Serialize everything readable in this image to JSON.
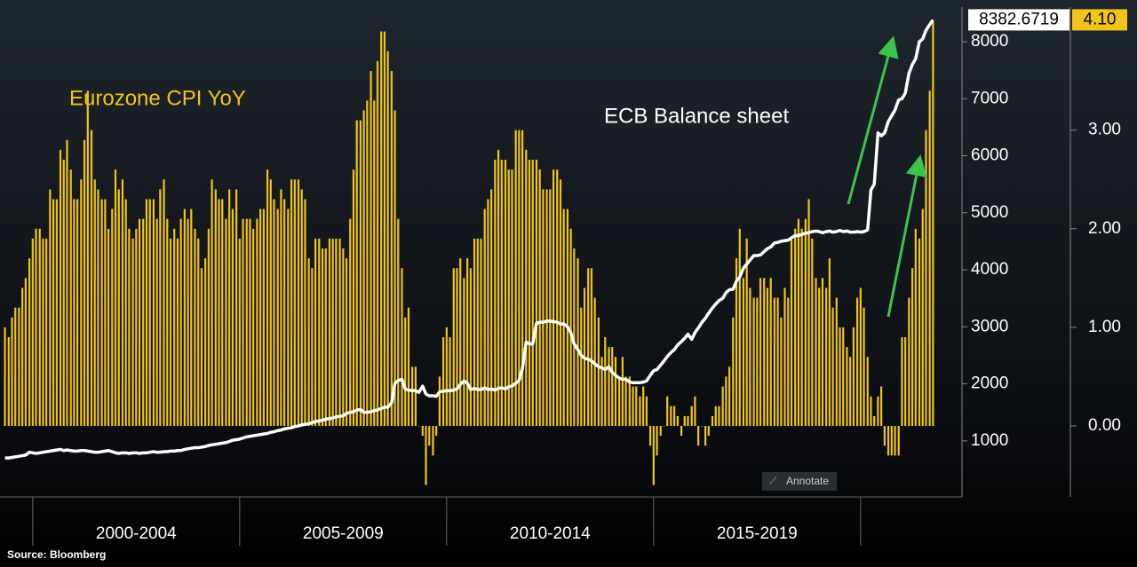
{
  "chart_data": {
    "type": "bar-line",
    "source": "Source: Bloomberg",
    "button": "Annotate",
    "xlim": [
      1999.21,
      2022.45
    ],
    "xticks": [
      {
        "value": 2002.5,
        "label": "2000-2004"
      },
      {
        "value": 2007.5,
        "label": "2005-2009"
      },
      {
        "value": 2012.5,
        "label": "2010-2014"
      },
      {
        "value": 2017.5,
        "label": "2015-2019"
      }
    ],
    "ylim": [
      17,
      8420
    ],
    "yticks": [
      1000,
      2000,
      3000,
      4000,
      5000,
      6000,
      7000,
      8000
    ],
    "y2lim": [
      -0.72,
      4.14
    ],
    "y2ticks": [
      {
        "value": 0,
        "label": "0.00"
      },
      {
        "value": 1,
        "label": "1.00"
      },
      {
        "value": 2,
        "label": "2.00"
      },
      {
        "value": 3,
        "label": "3.00"
      }
    ],
    "x": [
      1999.33,
      1999.42,
      1999.5,
      1999.58,
      1999.67,
      1999.75,
      1999.83,
      1999.92,
      2000,
      2000.08,
      2000.17,
      2000.25,
      2000.33,
      2000.42,
      2000.5,
      2000.58,
      2000.67,
      2000.75,
      2000.83,
      2000.92,
      2001,
      2001.08,
      2001.17,
      2001.25,
      2001.33,
      2001.42,
      2001.5,
      2001.58,
      2001.67,
      2001.75,
      2001.83,
      2001.92,
      2002,
      2002.08,
      2002.17,
      2002.25,
      2002.33,
      2002.42,
      2002.5,
      2002.58,
      2002.67,
      2002.75,
      2002.83,
      2002.92,
      2003,
      2003.08,
      2003.17,
      2003.25,
      2003.33,
      2003.42,
      2003.5,
      2003.58,
      2003.67,
      2003.75,
      2003.83,
      2003.92,
      2004,
      2004.08,
      2004.17,
      2004.25,
      2004.33,
      2004.42,
      2004.5,
      2004.58,
      2004.67,
      2004.75,
      2004.83,
      2004.92,
      2005,
      2005.08,
      2005.17,
      2005.25,
      2005.33,
      2005.42,
      2005.5,
      2005.58,
      2005.67,
      2005.75,
      2005.83,
      2005.92,
      2006,
      2006.08,
      2006.17,
      2006.25,
      2006.33,
      2006.42,
      2006.5,
      2006.58,
      2006.67,
      2006.75,
      2006.83,
      2006.92,
      2007,
      2007.08,
      2007.17,
      2007.25,
      2007.33,
      2007.42,
      2007.5,
      2007.58,
      2007.67,
      2007.75,
      2007.83,
      2007.92,
      2008,
      2008.08,
      2008.17,
      2008.25,
      2008.33,
      2008.42,
      2008.5,
      2008.58,
      2008.67,
      2008.75,
      2008.83,
      2008.92,
      2009,
      2009.08,
      2009.17,
      2009.25,
      2009.33,
      2009.42,
      2009.5,
      2009.58,
      2009.67,
      2009.75,
      2009.83,
      2009.92,
      2010,
      2010.08,
      2010.17,
      2010.25,
      2010.33,
      2010.42,
      2010.5,
      2010.58,
      2010.67,
      2010.75,
      2010.83,
      2010.92,
      2011,
      2011.08,
      2011.17,
      2011.25,
      2011.33,
      2011.42,
      2011.5,
      2011.58,
      2011.67,
      2011.75,
      2011.83,
      2011.92,
      2012,
      2012.08,
      2012.17,
      2012.25,
      2012.33,
      2012.42,
      2012.5,
      2012.58,
      2012.67,
      2012.75,
      2012.83,
      2012.92,
      2013,
      2013.08,
      2013.17,
      2013.25,
      2013.33,
      2013.42,
      2013.5,
      2013.58,
      2013.67,
      2013.75,
      2013.83,
      2013.92,
      2014,
      2014.08,
      2014.17,
      2014.25,
      2014.33,
      2014.42,
      2014.5,
      2014.58,
      2014.67,
      2014.75,
      2014.83,
      2014.92,
      2015,
      2015.08,
      2015.17,
      2015.25,
      2015.33,
      2015.42,
      2015.5,
      2015.58,
      2015.67,
      2015.75,
      2015.83,
      2015.92,
      2016,
      2016.08,
      2016.17,
      2016.25,
      2016.33,
      2016.42,
      2016.5,
      2016.58,
      2016.67,
      2016.75,
      2016.83,
      2016.92,
      2017,
      2017.08,
      2017.17,
      2017.25,
      2017.33,
      2017.42,
      2017.5,
      2017.58,
      2017.67,
      2017.75,
      2017.83,
      2017.92,
      2018,
      2018.08,
      2018.17,
      2018.25,
      2018.33,
      2018.42,
      2018.5,
      2018.58,
      2018.67,
      2018.75,
      2018.83,
      2018.92,
      2019,
      2019.08,
      2019.17,
      2019.25,
      2019.33,
      2019.42,
      2019.5,
      2019.58,
      2019.67,
      2019.75,
      2019.83,
      2019.92,
      2020,
      2020.08,
      2020.17,
      2020.25,
      2020.33,
      2020.42,
      2020.5,
      2020.58,
      2020.67,
      2020.75,
      2020.83,
      2020.92,
      2021,
      2021.08,
      2021.17,
      2021.25,
      2021.33,
      2021.42,
      2021.5,
      2021.58,
      2021.67,
      2021.75
    ],
    "series": [
      {
        "name": "Eurozone CPI YoY",
        "color": "#f0c419",
        "axis": "y2",
        "last_value_label": "4.10",
        "values": [
          1.0,
          0.9,
          1.1,
          1.2,
          1.2,
          1.4,
          1.5,
          1.7,
          1.9,
          2.0,
          2.0,
          1.9,
          1.9,
          2.4,
          2.3,
          2.3,
          2.8,
          2.7,
          2.9,
          2.6,
          2.3,
          2.3,
          2.5,
          2.9,
          3.4,
          3.0,
          2.5,
          2.4,
          2.3,
          2.3,
          2.0,
          2.2,
          2.6,
          2.4,
          2.5,
          2.3,
          2.0,
          1.9,
          2.0,
          2.1,
          2.1,
          2.3,
          2.3,
          2.3,
          2.1,
          2.4,
          2.5,
          2.1,
          1.9,
          2.0,
          1.9,
          2.1,
          2.2,
          2.1,
          2.2,
          2.0,
          1.9,
          1.6,
          1.7,
          2.0,
          2.5,
          2.4,
          2.3,
          2.3,
          2.1,
          2.4,
          2.2,
          2.4,
          1.9,
          2.1,
          2.1,
          2.1,
          2.0,
          2.1,
          2.2,
          2.2,
          2.6,
          2.5,
          2.3,
          2.2,
          2.4,
          2.3,
          2.2,
          2.5,
          2.5,
          2.5,
          2.4,
          2.3,
          1.7,
          1.6,
          1.9,
          1.9,
          1.8,
          1.8,
          1.9,
          1.9,
          1.9,
          1.9,
          1.8,
          1.7,
          2.1,
          2.6,
          3.1,
          3.1,
          3.2,
          3.3,
          3.6,
          3.3,
          3.7,
          4.0,
          4.0,
          3.8,
          3.6,
          3.2,
          2.1,
          1.6,
          1.1,
          1.2,
          0.6,
          0.6,
          0.0,
          -0.1,
          -0.6,
          -0.2,
          -0.3,
          -0.1,
          0.5,
          0.9,
          1.0,
          0.9,
          1.6,
          1.6,
          1.7,
          1.5,
          1.7,
          1.6,
          1.9,
          1.9,
          1.9,
          2.2,
          2.3,
          2.4,
          2.7,
          2.8,
          2.7,
          2.7,
          2.6,
          2.6,
          3.0,
          3.0,
          3.0,
          2.8,
          2.7,
          2.7,
          2.7,
          2.6,
          2.4,
          2.4,
          2.4,
          2.6,
          2.6,
          2.5,
          2.2,
          2.2,
          2.0,
          1.8,
          1.7,
          1.2,
          1.4,
          1.6,
          1.6,
          1.3,
          1.1,
          0.7,
          0.9,
          0.8,
          0.8,
          0.7,
          0.5,
          0.7,
          0.5,
          0.5,
          0.4,
          0.4,
          0.3,
          0.4,
          0.3,
          -0.2,
          -0.6,
          -0.3,
          -0.1,
          0.0,
          0.3,
          0.2,
          0.2,
          0.1,
          -0.1,
          0.1,
          0.1,
          0.2,
          0.3,
          -0.2,
          0.0,
          -0.2,
          -0.1,
          0.1,
          0.2,
          0.2,
          0.4,
          0.5,
          0.6,
          1.1,
          1.7,
          2.0,
          1.5,
          1.9,
          1.4,
          1.3,
          1.3,
          1.5,
          1.5,
          1.4,
          1.5,
          1.3,
          1.3,
          1.1,
          1.4,
          1.3,
          1.9,
          2.0,
          2.1,
          2.0,
          2.1,
          2.3,
          1.9,
          1.5,
          1.4,
          1.5,
          1.4,
          1.7,
          1.2,
          1.3,
          1.0,
          1.0,
          0.8,
          0.7,
          1.0,
          1.3,
          1.4,
          1.2,
          0.7,
          0.3,
          0.1,
          0.3,
          0.4,
          -0.2,
          -0.3,
          -0.3,
          -0.3,
          -0.3,
          0.9,
          0.9,
          1.3,
          1.6,
          2.0,
          1.9,
          2.2,
          3.0,
          3.4,
          4.1
        ]
      },
      {
        "name": "ECB Balance sheet",
        "color": "#ffffff",
        "values": [
          700,
          700,
          710,
          720,
          730,
          740,
          750,
          800,
          790,
          780,
          790,
          800,
          810,
          820,
          830,
          840,
          850,
          830,
          840,
          830,
          820,
          820,
          830,
          830,
          820,
          810,
          800,
          800,
          810,
          820,
          830,
          810,
          790,
          780,
          790,
          790,
          780,
          790,
          790,
          780,
          790,
          790,
          800,
          810,
          800,
          800,
          810,
          810,
          820,
          820,
          830,
          830,
          850,
          860,
          870,
          880,
          880,
          890,
          900,
          920,
          930,
          940,
          950,
          960,
          970,
          990,
          1010,
          1020,
          1030,
          1050,
          1070,
          1080,
          1090,
          1100,
          1110,
          1120,
          1130,
          1150,
          1160,
          1180,
          1190,
          1210,
          1220,
          1230,
          1250,
          1260,
          1280,
          1290,
          1300,
          1320,
          1340,
          1350,
          1360,
          1380,
          1390,
          1400,
          1420,
          1430,
          1440,
          1480,
          1500,
          1510,
          1540,
          1550,
          1500,
          1500,
          1510,
          1530,
          1540,
          1570,
          1590,
          1590,
          1670,
          2010,
          2060,
          2080,
          1910,
          1890,
          1880,
          1880,
          1850,
          1960,
          1820,
          1790,
          1790,
          1780,
          1860,
          1870,
          1880,
          1880,
          1890,
          1910,
          1990,
          2050,
          2010,
          1900,
          1920,
          1900,
          1900,
          1930,
          1900,
          1910,
          1890,
          1920,
          1930,
          1910,
          1950,
          1960,
          2010,
          2060,
          2260,
          2730,
          2700,
          2700,
          3060,
          3080,
          3080,
          3100,
          3100,
          3090,
          3080,
          3050,
          3050,
          3000,
          2900,
          2700,
          2600,
          2500,
          2450,
          2430,
          2400,
          2350,
          2300,
          2280,
          2250,
          2300,
          2200,
          2150,
          2100,
          2080,
          2080,
          2030,
          2020,
          2020,
          2020,
          2030,
          2050,
          2150,
          2230,
          2250,
          2330,
          2400,
          2480,
          2550,
          2600,
          2680,
          2740,
          2800,
          2870,
          2780,
          2900,
          2980,
          3080,
          3150,
          3240,
          3330,
          3400,
          3460,
          3500,
          3600,
          3650,
          3660,
          3800,
          3870,
          4030,
          4100,
          4170,
          4250,
          4250,
          4260,
          4320,
          4370,
          4400,
          4470,
          4480,
          4500,
          4510,
          4520,
          4560,
          4600,
          4600,
          4620,
          4640,
          4650,
          4670,
          4680,
          4670,
          4650,
          4670,
          4680,
          4660,
          4670,
          4690,
          4670,
          4680,
          4660,
          4660,
          4670,
          4660,
          4670,
          4700,
          5400,
          5500,
          6400,
          6350,
          6400,
          6600,
          6700,
          6800,
          6980,
          7000,
          7100,
          7450,
          7600,
          7700,
          8000,
          8050,
          8200,
          8300,
          8382.6719
        ]
      }
    ]
  }
}
